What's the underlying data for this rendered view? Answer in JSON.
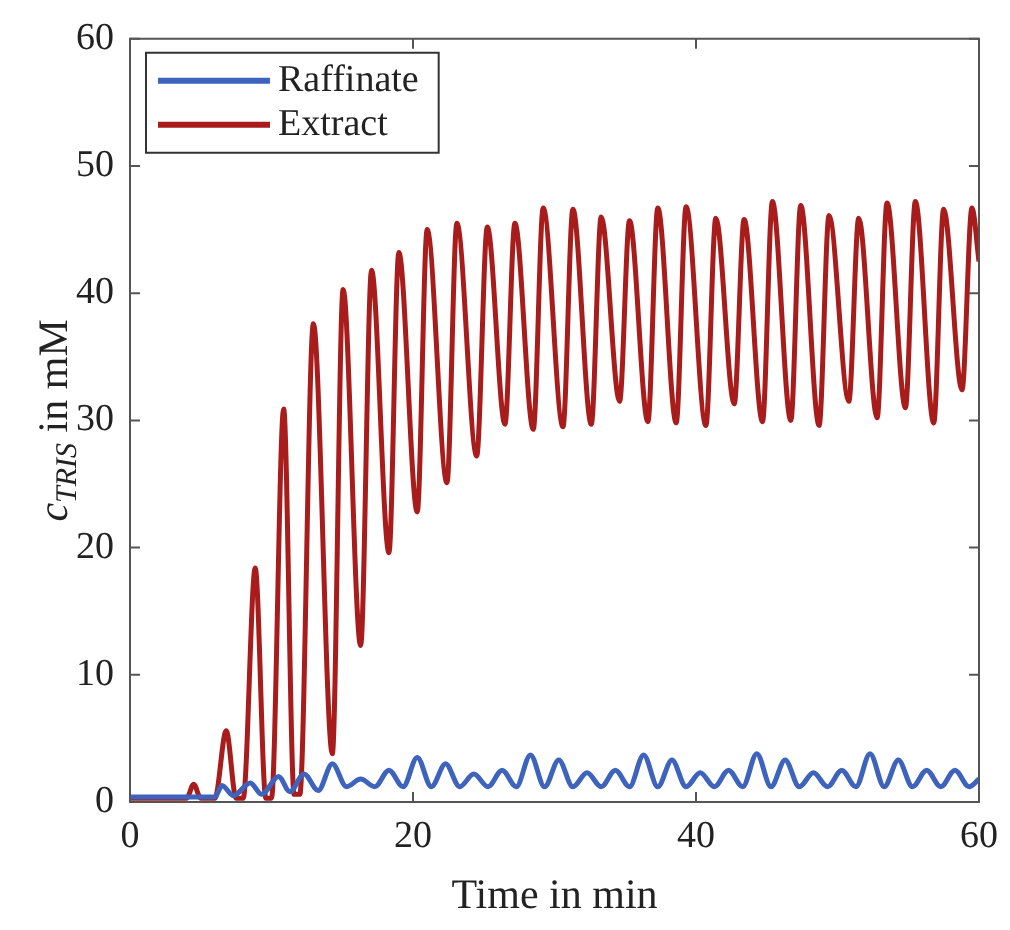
{
  "chart_data": {
    "type": "line",
    "xlabel": "Time in min",
    "ylabel": "c$_{TRIS}$ in mM",
    "xlim": [
      0,
      60
    ],
    "xticks": [
      0,
      20,
      40,
      60
    ],
    "ylim": [
      0,
      60
    ],
    "yticks": [
      0,
      10,
      20,
      30,
      40,
      50,
      60
    ],
    "grid": false,
    "legend": "top left",
    "marker": "none",
    "line_style": "solid",
    "series": [
      {
        "name": "Raffinate",
        "color": "#3d63bd",
        "x": [
          0,
          6,
          6.5,
          7.3,
          8.5,
          9.3,
          10.5,
          11.3,
          12.3,
          13.3,
          14.3,
          15.3,
          16.3,
          17.3,
          18.3,
          19.3,
          20.3,
          21.3,
          22.3,
          23.3,
          24.3,
          25.3,
          26.3,
          27.3,
          28.3,
          29.3,
          30.3,
          31.3,
          32.3,
          33.3,
          34.3,
          35.3,
          36.3,
          37.3,
          38.3,
          39.3,
          40.3,
          41.3,
          42.3,
          43.3,
          44.3,
          45.3,
          46.3,
          47.3,
          48.3,
          49.3,
          50.3,
          51.3,
          52.3,
          53.3,
          54.3,
          55.3,
          56.3,
          57.3,
          58.3,
          59.3,
          60
        ],
        "values": [
          0.4,
          0.4,
          1.3,
          0.5,
          1.5,
          0.6,
          2.0,
          0.8,
          2.2,
          0.9,
          3.0,
          1.2,
          1.8,
          1.2,
          2.5,
          1.2,
          3.5,
          1.2,
          3.0,
          1.2,
          2.2,
          1.2,
          2.5,
          1.2,
          3.7,
          1.2,
          3.3,
          1.2,
          2.3,
          1.2,
          2.5,
          1.2,
          3.7,
          1.2,
          3.3,
          1.2,
          2.3,
          1.2,
          2.5,
          1.2,
          3.8,
          1.2,
          3.3,
          1.2,
          2.3,
          1.2,
          2.5,
          1.2,
          3.8,
          1.2,
          3.3,
          1.2,
          2.5,
          1.2,
          2.5,
          1.2,
          1.8
        ]
      },
      {
        "name": "Extract",
        "color": "#a81c1c",
        "x": [
          0,
          4,
          4.5,
          5,
          6,
          6.8,
          7.5,
          8,
          8.85,
          9.6,
          10,
          10.86,
          11.6,
          12,
          12.96,
          14.3,
          15.06,
          16.3,
          17.07,
          18.3,
          19.0,
          20.3,
          21.0,
          22.4,
          23.1,
          24.5,
          25.25,
          26.5,
          27.2,
          28.5,
          29.2,
          30.6,
          31.3,
          32.6,
          33.3,
          34.6,
          35.3,
          36.6,
          37.3,
          38.6,
          39.3,
          40.7,
          41.4,
          42.7,
          43.4,
          44.7,
          45.4,
          46.7,
          47.4,
          48.7,
          49.4,
          50.8,
          51.5,
          52.8,
          53.5,
          54.8,
          55.5,
          56.8,
          57.5,
          58.8,
          59.5,
          60
        ],
        "values": [
          0.3,
          0.3,
          1.4,
          0.3,
          0.3,
          5.6,
          0.3,
          0.3,
          18.4,
          0.3,
          0.3,
          30.9,
          0.6,
          0.6,
          37.6,
          3.8,
          40.3,
          12.3,
          41.8,
          19.6,
          43.2,
          22.8,
          45,
          25.1,
          45.5,
          27.2,
          45.2,
          29.7,
          45.5,
          29.3,
          46.7,
          29.5,
          46.6,
          29.7,
          46,
          31.5,
          45.7,
          29.9,
          46.7,
          29.8,
          46.8,
          29.6,
          45.9,
          31.3,
          45.8,
          29.9,
          47.2,
          30,
          46.9,
          29.6,
          46.1,
          31.5,
          45.9,
          30.2,
          47.1,
          31,
          47.2,
          29.8,
          46.6,
          32.4,
          46.7,
          42.5
        ]
      }
    ]
  }
}
